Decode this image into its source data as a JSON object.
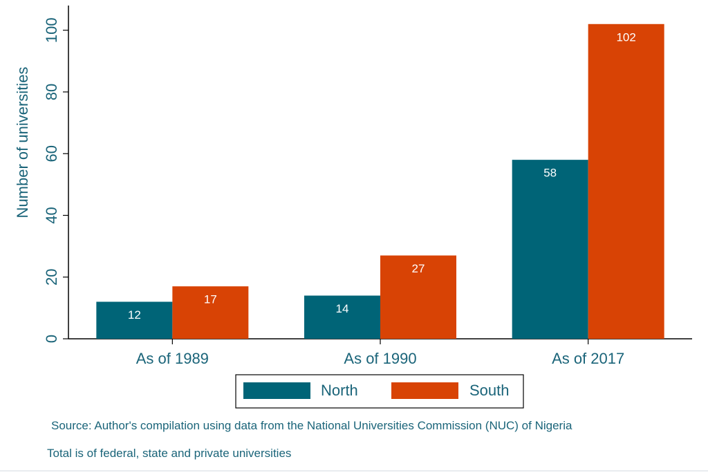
{
  "chart_data": {
    "type": "bar",
    "categories": [
      "As of 1989",
      "As of 1990",
      "As of 2017"
    ],
    "series": [
      {
        "name": "North",
        "values": [
          12,
          14,
          58
        ],
        "color": "#006477"
      },
      {
        "name": "South",
        "values": [
          17,
          27,
          102
        ],
        "color": "#d84305"
      }
    ],
    "ylabel": "Number of universities",
    "ylim": [
      0,
      108
    ],
    "yticks": [
      0,
      20,
      40,
      60,
      80,
      100
    ],
    "grid": false,
    "legend_position": "bottom-center",
    "text_color": "#1a6479",
    "notes": [
      "Source: Author's compilation using data from the National Universities Commission (NUC)  of Nigeria",
      "Total is of federal, state and private universities"
    ]
  }
}
